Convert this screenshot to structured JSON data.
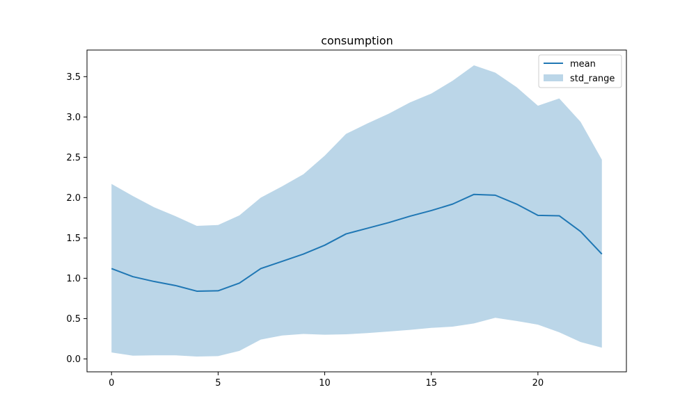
{
  "chart_data": {
    "type": "line",
    "title": "consumption",
    "xlabel": "",
    "ylabel": "",
    "xlim": [
      -1.15,
      24.15
    ],
    "ylim": [
      -0.16,
      3.83
    ],
    "xticks": [
      0,
      5,
      10,
      15,
      20
    ],
    "yticks": [
      0.0,
      0.5,
      1.0,
      1.5,
      2.0,
      2.5,
      3.0,
      3.5
    ],
    "ytick_labels": [
      "0.0",
      "0.5",
      "1.0",
      "1.5",
      "2.0",
      "2.5",
      "3.0",
      "3.5"
    ],
    "grid": false,
    "legend_position": "top-right",
    "x": [
      0,
      1,
      2,
      3,
      4,
      5,
      6,
      7,
      8,
      9,
      10,
      11,
      12,
      13,
      14,
      15,
      16,
      17,
      18,
      19,
      20,
      21,
      22,
      23
    ],
    "series": [
      {
        "name": "mean",
        "kind": "line",
        "color": "#1f77b4",
        "values": [
          1.12,
          1.02,
          0.96,
          0.91,
          0.84,
          0.845,
          0.94,
          1.12,
          1.21,
          1.3,
          1.41,
          1.55,
          1.62,
          1.69,
          1.77,
          1.84,
          1.92,
          2.04,
          2.03,
          1.92,
          1.78,
          1.775,
          1.58,
          1.3
        ]
      },
      {
        "name": "std_range",
        "kind": "area_band",
        "color": "#1f77b4",
        "opacity": 0.3,
        "lower": [
          0.08,
          0.04,
          0.045,
          0.045,
          0.03,
          0.035,
          0.1,
          0.24,
          0.29,
          0.31,
          0.3,
          0.305,
          0.32,
          0.34,
          0.36,
          0.385,
          0.4,
          0.44,
          0.51,
          0.47,
          0.425,
          0.33,
          0.21,
          0.14
        ],
        "upper": [
          2.17,
          2.02,
          1.88,
          1.77,
          1.65,
          1.66,
          1.78,
          2.0,
          2.14,
          2.29,
          2.52,
          2.79,
          2.92,
          3.04,
          3.18,
          3.29,
          3.45,
          3.64,
          3.55,
          3.37,
          3.14,
          3.23,
          2.94,
          2.47
        ]
      }
    ]
  }
}
